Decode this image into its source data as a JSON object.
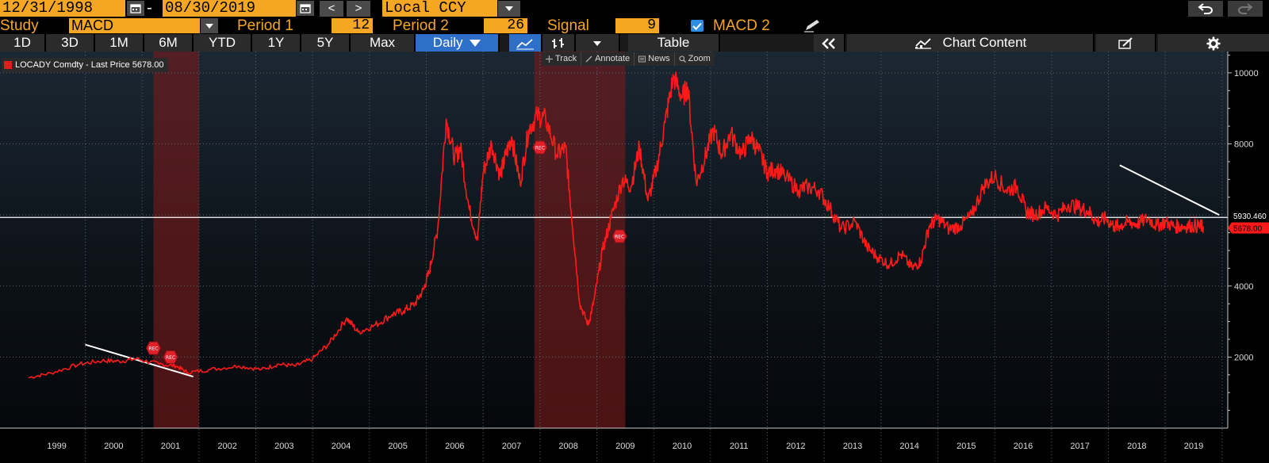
{
  "header": {
    "start_date": "12/31/1998",
    "end_date": "08/30/2019",
    "dash": "-",
    "prev": "<",
    "next": ">",
    "currency": "Local CCY"
  },
  "study": {
    "label": "Study",
    "value": "MACD",
    "period1_label": "Period 1",
    "period1_value": "12",
    "period2_label": "Period 2",
    "period2_value": "26",
    "signal_label": "Signal",
    "signal_value": "9",
    "macd2_label": "MACD 2"
  },
  "toolbar": {
    "ranges": [
      "1D",
      "3D",
      "1M",
      "6M",
      "YTD",
      "1Y",
      "5Y",
      "Max"
    ],
    "frequency": "Daily",
    "table_label": "Table",
    "chart_content_label": "Chart Content"
  },
  "chart_tools": {
    "track": "Track",
    "annotate": "Annotate",
    "news": "News",
    "zoom": "Zoom"
  },
  "legend": {
    "text": "LOCADY Comdty - Last Price 5678.00",
    "color": "#e21b1b"
  },
  "chart_data": {
    "type": "line",
    "series": [
      {
        "name": "LOCADY Comdty - Last Price",
        "color": "#ff1a1a",
        "x": [
          1999.0,
          1999.4,
          1999.9,
          2000.3,
          2000.6,
          2000.9,
          2001.3,
          2001.6,
          2001.8,
          2002.2,
          2002.7,
          2003.1,
          2003.4,
          2003.7,
          2004.0,
          2004.3,
          2004.6,
          2004.8,
          2005.1,
          2005.4,
          2005.6,
          2005.8,
          2005.95,
          2006.05,
          2006.2,
          2006.35,
          2006.5,
          2006.6,
          2006.75,
          2006.9,
          2007.0,
          2007.15,
          2007.3,
          2007.4,
          2007.5,
          2007.65,
          2007.8,
          2007.95,
          2008.1,
          2008.3,
          2008.45,
          2008.55,
          2008.7,
          2008.85,
          2008.95,
          2009.1,
          2009.25,
          2009.45,
          2009.6,
          2009.75,
          2009.9,
          2010.05,
          2010.2,
          2010.35,
          2010.5,
          2010.6,
          2010.75,
          2010.9,
          2011.05,
          2011.2,
          2011.35,
          2011.55,
          2011.7,
          2011.85,
          2012.0,
          2012.15,
          2012.3,
          2012.55,
          2012.7,
          2012.9,
          2013.1,
          2013.3,
          2013.55,
          2013.75,
          2013.95,
          2014.15,
          2014.35,
          2014.55,
          2014.7,
          2014.85,
          2015.0,
          2015.2,
          2015.4,
          2015.6,
          2015.8,
          2016.0,
          2016.2,
          2016.4,
          2016.55,
          2016.7,
          2016.9,
          2017.1,
          2017.3,
          2017.5,
          2017.65,
          2017.8,
          2017.95,
          2018.1,
          2018.2,
          2018.35,
          2018.5,
          2018.7,
          2018.85,
          2019.0,
          2019.15,
          2019.3,
          2019.45,
          2019.6,
          2019.67
        ],
        "y": [
          1420,
          1550,
          1800,
          1900,
          1880,
          1950,
          1800,
          1750,
          1560,
          1650,
          1750,
          1650,
          1800,
          1750,
          1950,
          2400,
          3100,
          2700,
          2900,
          3200,
          3300,
          3500,
          3900,
          4400,
          5600,
          8700,
          7600,
          7900,
          6200,
          5300,
          7200,
          8000,
          7100,
          7700,
          8200,
          6900,
          8400,
          8800,
          8700,
          7700,
          7900,
          6100,
          3500,
          2900,
          3600,
          5000,
          5900,
          7000,
          6800,
          7900,
          6400,
          7300,
          8600,
          9900,
          9300,
          9600,
          6900,
          7600,
          8400,
          7700,
          8300,
          7700,
          8200,
          7800,
          7200,
          7300,
          7100,
          6700,
          6800,
          6700,
          6200,
          5600,
          5800,
          5100,
          4800,
          4600,
          4900,
          4500,
          4700,
          5700,
          5900,
          5600,
          5700,
          6000,
          6800,
          7100,
          6700,
          6800,
          6100,
          6000,
          6200,
          6000,
          6300,
          6200,
          6100,
          5800,
          5900,
          5678,
          5700,
          5800,
          5750,
          5900,
          5700,
          5800,
          5678,
          5678,
          5700,
          5678,
          5678
        ]
      }
    ],
    "ylim": [
      0,
      10600
    ],
    "yticks": [
      2000,
      4000,
      6000,
      8000,
      10000
    ],
    "xticks": [
      "1999",
      "2000",
      "2001",
      "2002",
      "2003",
      "2004",
      "2005",
      "2006",
      "2007",
      "2008",
      "2009",
      "2010",
      "2011",
      "2012",
      "2013",
      "2014",
      "2015",
      "2016",
      "2017",
      "2018",
      "2019"
    ],
    "xrange": [
      1998.5,
      2020.1
    ],
    "recessions": [
      [
        2001.2,
        2002.0
      ],
      [
        2007.9,
        2009.5
      ]
    ],
    "rec_label": "REC",
    "markers": [
      {
        "x": 2001.2,
        "y": 2250
      },
      {
        "x": 2001.5,
        "y": 2000
      },
      {
        "x": 2008.0,
        "y": 7900
      },
      {
        "x": 2009.4,
        "y": 5400
      }
    ],
    "trendlines": [
      {
        "x1": 2000.0,
        "y1": 2350,
        "x2": 2001.9,
        "y2": 1450
      },
      {
        "x1": 2018.2,
        "y1": 7400,
        "x2": 2019.95,
        "y2": 6000
      }
    ],
    "reference_line": {
      "value": 5930.46,
      "label": "5930.460",
      "color": "#ffffff"
    },
    "last_price": {
      "value": 5678.0,
      "label": "5678.00",
      "color": "#ff1a1a"
    },
    "grid": true,
    "background": "#0b0f14"
  }
}
